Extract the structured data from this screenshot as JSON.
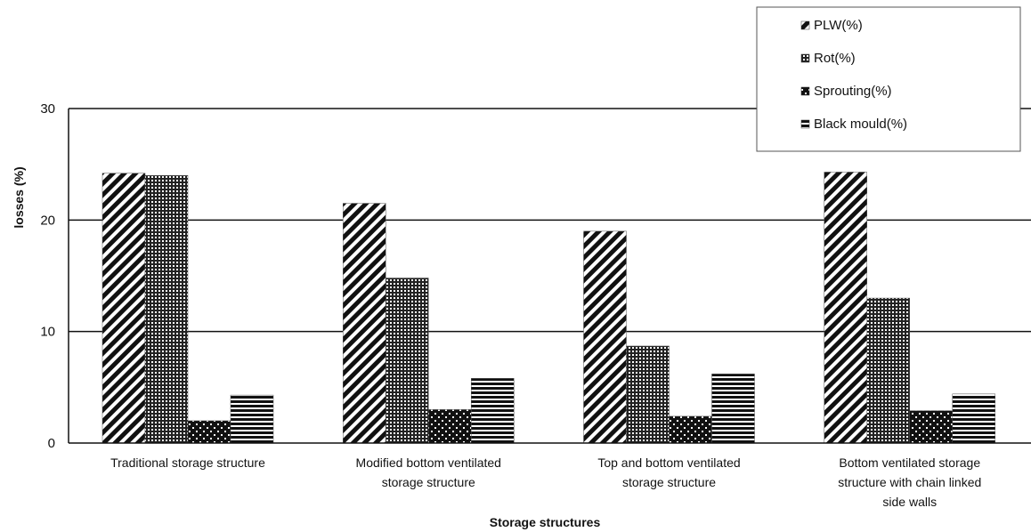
{
  "chart_data": {
    "type": "bar",
    "title": "",
    "xlabel": "Storage structures",
    "ylabel": "losses (%)",
    "ylim": [
      0,
      30
    ],
    "yticks": [
      0,
      10,
      20,
      30
    ],
    "grid": true,
    "legend_position": "top-right",
    "categories": [
      [
        "Traditional storage structure"
      ],
      [
        "Modified bottom ventilated",
        "storage structure"
      ],
      [
        "Top and bottom ventilated",
        "storage structure"
      ],
      [
        "Bottom ventilated storage",
        "structure with chain linked",
        "side walls"
      ]
    ],
    "series": [
      {
        "name": "PLW(%)",
        "pattern": "diagonal",
        "values": [
          24.2,
          21.5,
          19.0,
          24.3
        ]
      },
      {
        "name": "Rot(%)",
        "pattern": "grid",
        "values": [
          24.0,
          14.8,
          8.7,
          13.0
        ]
      },
      {
        "name": "Sprouting(%)",
        "pattern": "checker",
        "values": [
          2.0,
          3.0,
          2.4,
          2.9
        ]
      },
      {
        "name": "Black mould(%)",
        "pattern": "horizontal",
        "values": [
          4.3,
          5.8,
          6.2,
          4.4
        ]
      }
    ]
  }
}
